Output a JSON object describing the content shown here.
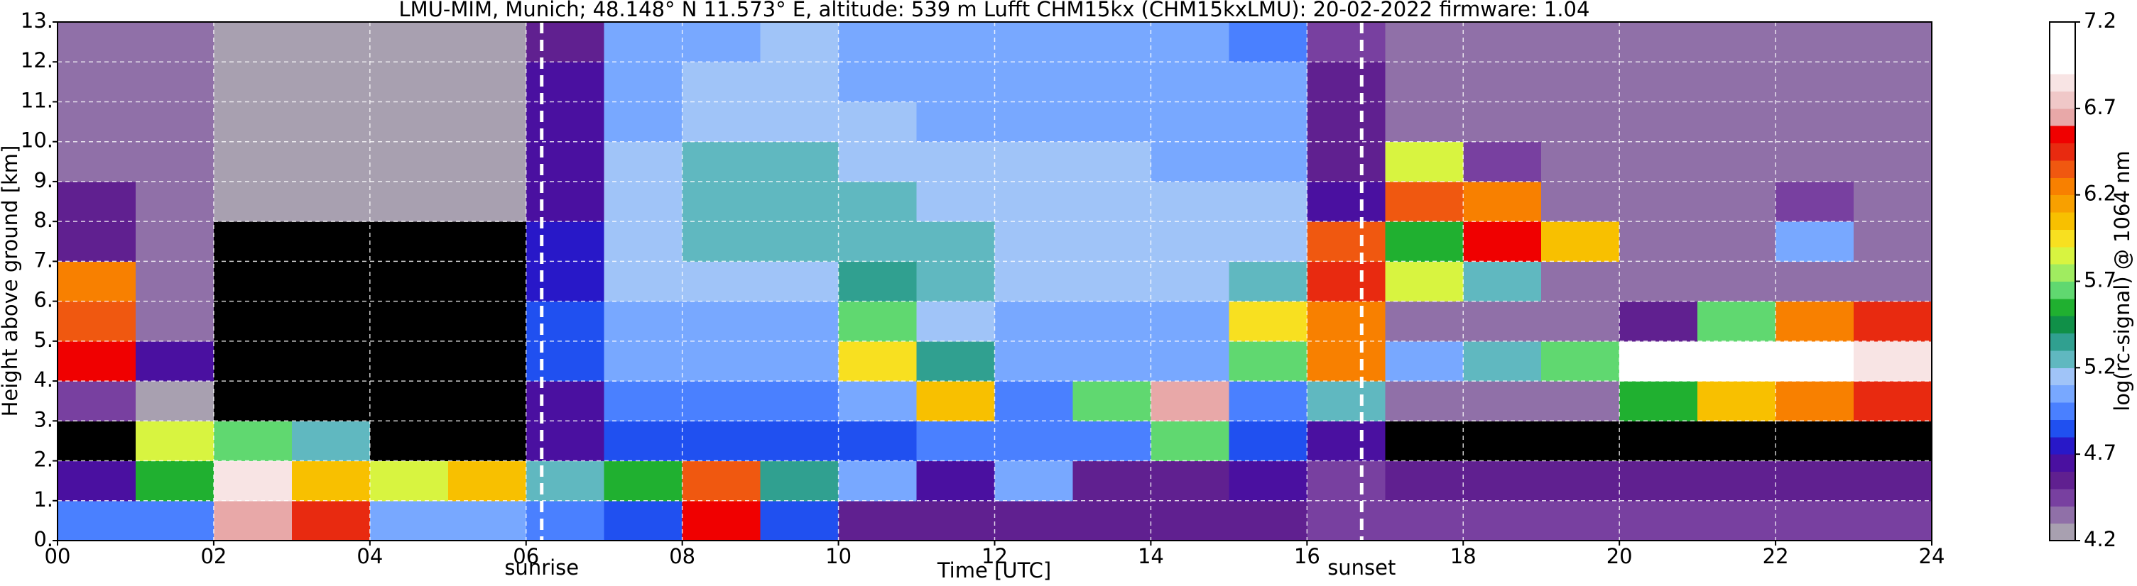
{
  "chart_data": {
    "type": "heatmap",
    "title": "LMU-MIM, Munich; 48.148° N 11.573° E, altitude: 539 m    Lufft CHM15kx (CHM15kxLMU): 20-02-2022    firmware: 1.04",
    "x_label": "Time [UTC]",
    "y_label": "Height above ground [km]",
    "colorbar_label": "log(rc-signal) @ 1064 nm",
    "xlim": [
      0,
      24
    ],
    "ylim": [
      0,
      13
    ],
    "xticks": [
      {
        "value": 0,
        "label": "00"
      },
      {
        "value": 2,
        "label": "02"
      },
      {
        "value": 4,
        "label": "04"
      },
      {
        "value": 6,
        "label": "06"
      },
      {
        "value": 8,
        "label": "08"
      },
      10,
      12,
      14,
      16,
      18,
      20,
      22,
      24
    ],
    "yticks": [
      {
        "value": 0,
        "label": "0."
      },
      {
        "value": 1,
        "label": "1."
      },
      {
        "value": 2,
        "label": "2."
      },
      {
        "value": 3,
        "label": "3."
      },
      {
        "value": 4,
        "label": "4."
      },
      {
        "value": 5,
        "label": "5."
      },
      {
        "value": 6,
        "label": "6."
      },
      {
        "value": 7,
        "label": "7."
      },
      {
        "value": 8,
        "label": "8."
      },
      {
        "value": 9,
        "label": "9."
      },
      {
        "value": 10,
        "label": "10."
      },
      {
        "value": 11,
        "label": "11."
      },
      {
        "value": 12,
        "label": "12."
      },
      {
        "value": 13,
        "label": "13."
      }
    ],
    "grid": true,
    "grid_color": "#ffffff",
    "xbins": [
      0,
      1,
      2,
      3,
      4,
      5,
      6,
      7,
      8,
      9,
      10,
      11,
      12,
      13,
      14,
      15,
      16,
      17,
      18,
      19,
      20,
      21,
      22,
      23,
      24
    ],
    "ybins": [
      0,
      1,
      2,
      3,
      4,
      5,
      6,
      7,
      8,
      9,
      10,
      11,
      12,
      13
    ],
    "z": [
      [
        4.9,
        4.9,
        6.6,
        6.4,
        5.0,
        5.0,
        4.9,
        4.8,
        6.5,
        4.8,
        4.5,
        4.5,
        4.5,
        4.5,
        4.5,
        4.5,
        4.4,
        4.4,
        4.4,
        4.4,
        4.4,
        4.4,
        4.4,
        4.4
      ],
      [
        4.6,
        5.5,
        6.8,
        6.0,
        5.8,
        6.0,
        5.2,
        5.5,
        6.3,
        5.3,
        5.0,
        4.6,
        5.0,
        4.5,
        4.5,
        4.6,
        4.4,
        4.5,
        4.5,
        4.5,
        4.5,
        4.5,
        4.5,
        4.5
      ],
      [
        4.1,
        5.8,
        5.6,
        5.2,
        4.1,
        4.1,
        4.6,
        4.8,
        4.8,
        4.8,
        4.8,
        4.9,
        4.9,
        4.9,
        5.6,
        4.8,
        4.6,
        4.1,
        4.1,
        4.1,
        4.1,
        4.1,
        4.1,
        4.1
      ],
      [
        4.4,
        4.2,
        4.0,
        4.0,
        4.0,
        4.0,
        4.6,
        4.9,
        4.9,
        4.9,
        5.0,
        6.0,
        4.9,
        5.6,
        6.6,
        4.9,
        5.2,
        4.3,
        4.3,
        4.3,
        5.5,
        6.0,
        6.2,
        6.4
      ],
      [
        6.5,
        4.6,
        4.0,
        4.0,
        4.0,
        4.0,
        4.8,
        5.0,
        5.0,
        5.0,
        5.9,
        5.3,
        5.0,
        5.0,
        5.0,
        5.6,
        6.2,
        5.0,
        5.2,
        5.6,
        6.9,
        6.9,
        6.9,
        6.8
      ],
      [
        6.3,
        4.3,
        4.0,
        4.0,
        4.0,
        4.0,
        4.8,
        5.0,
        5.0,
        5.0,
        5.6,
        5.1,
        5.0,
        5.0,
        5.0,
        5.9,
        6.2,
        4.3,
        4.3,
        4.3,
        4.5,
        5.6,
        6.2,
        6.4
      ],
      [
        6.2,
        4.3,
        4.0,
        4.0,
        4.0,
        4.0,
        4.7,
        5.1,
        5.1,
        5.1,
        5.3,
        5.2,
        5.1,
        5.1,
        5.1,
        5.2,
        6.4,
        5.8,
        5.2,
        4.3,
        4.3,
        4.3,
        4.3,
        4.3
      ],
      [
        4.5,
        4.3,
        4.1,
        4.1,
        4.1,
        4.1,
        4.7,
        5.1,
        5.2,
        5.2,
        5.2,
        5.2,
        5.1,
        5.1,
        5.1,
        5.1,
        6.3,
        5.5,
        6.5,
        6.0,
        4.3,
        4.3,
        5.0,
        4.3
      ],
      [
        4.5,
        4.3,
        4.2,
        4.2,
        4.2,
        4.2,
        4.6,
        5.1,
        5.2,
        5.2,
        5.2,
        5.1,
        5.1,
        5.1,
        5.1,
        5.1,
        4.6,
        6.3,
        6.2,
        4.3,
        4.3,
        4.3,
        4.4,
        4.3
      ],
      [
        4.3,
        4.3,
        4.2,
        4.2,
        4.2,
        4.2,
        4.6,
        5.1,
        5.2,
        5.2,
        5.1,
        5.1,
        5.1,
        5.1,
        5.0,
        5.0,
        4.5,
        5.8,
        4.4,
        4.3,
        4.3,
        4.3,
        4.3,
        4.3
      ],
      [
        4.3,
        4.3,
        4.2,
        4.2,
        4.2,
        4.2,
        4.6,
        5.0,
        5.1,
        5.1,
        5.1,
        5.0,
        5.0,
        5.0,
        5.0,
        5.0,
        4.5,
        4.3,
        4.3,
        4.3,
        4.3,
        4.3,
        4.3,
        4.3
      ],
      [
        4.3,
        4.3,
        4.2,
        4.2,
        4.2,
        4.2,
        4.6,
        5.0,
        5.1,
        5.1,
        5.0,
        5.0,
        5.0,
        5.0,
        5.0,
        5.0,
        4.5,
        4.3,
        4.3,
        4.3,
        4.3,
        4.3,
        4.3,
        4.3
      ],
      [
        4.3,
        4.3,
        4.2,
        4.2,
        4.2,
        4.2,
        4.5,
        5.0,
        5.0,
        5.1,
        5.0,
        5.0,
        5.0,
        5.0,
        5.0,
        4.9,
        4.4,
        4.3,
        4.3,
        4.3,
        4.3,
        4.3,
        4.3,
        4.3
      ]
    ],
    "clim": [
      4.2,
      7.2
    ],
    "cticks": [
      4.2,
      4.7,
      5.2,
      5.7,
      6.2,
      6.7,
      7.2
    ],
    "under_color": "#000000",
    "colors": [
      "#a8a0b0",
      "#9070a8",
      "#7840a0",
      "#602090",
      "#4a10a0",
      "#2818c8",
      "#2050f0",
      "#4a80ff",
      "#78a8ff",
      "#a0c4f8",
      "#60b8c0",
      "#30a090",
      "#109048",
      "#20b030",
      "#60d870",
      "#a0ec60",
      "#d8f440",
      "#f8e020",
      "#f8c000",
      "#f8a000",
      "#f88000",
      "#f05810",
      "#e82a10",
      "#f00000",
      "#e8a8a8",
      "#f0c8c8",
      "#f8e4e4",
      "#ffffff",
      "#ffffff",
      "#ffffff"
    ],
    "annotations": [
      {
        "label": "sunrise",
        "x": 6.2
      },
      {
        "label": "sunset",
        "x": 16.7
      }
    ],
    "annotation_color": "#ffffff"
  }
}
